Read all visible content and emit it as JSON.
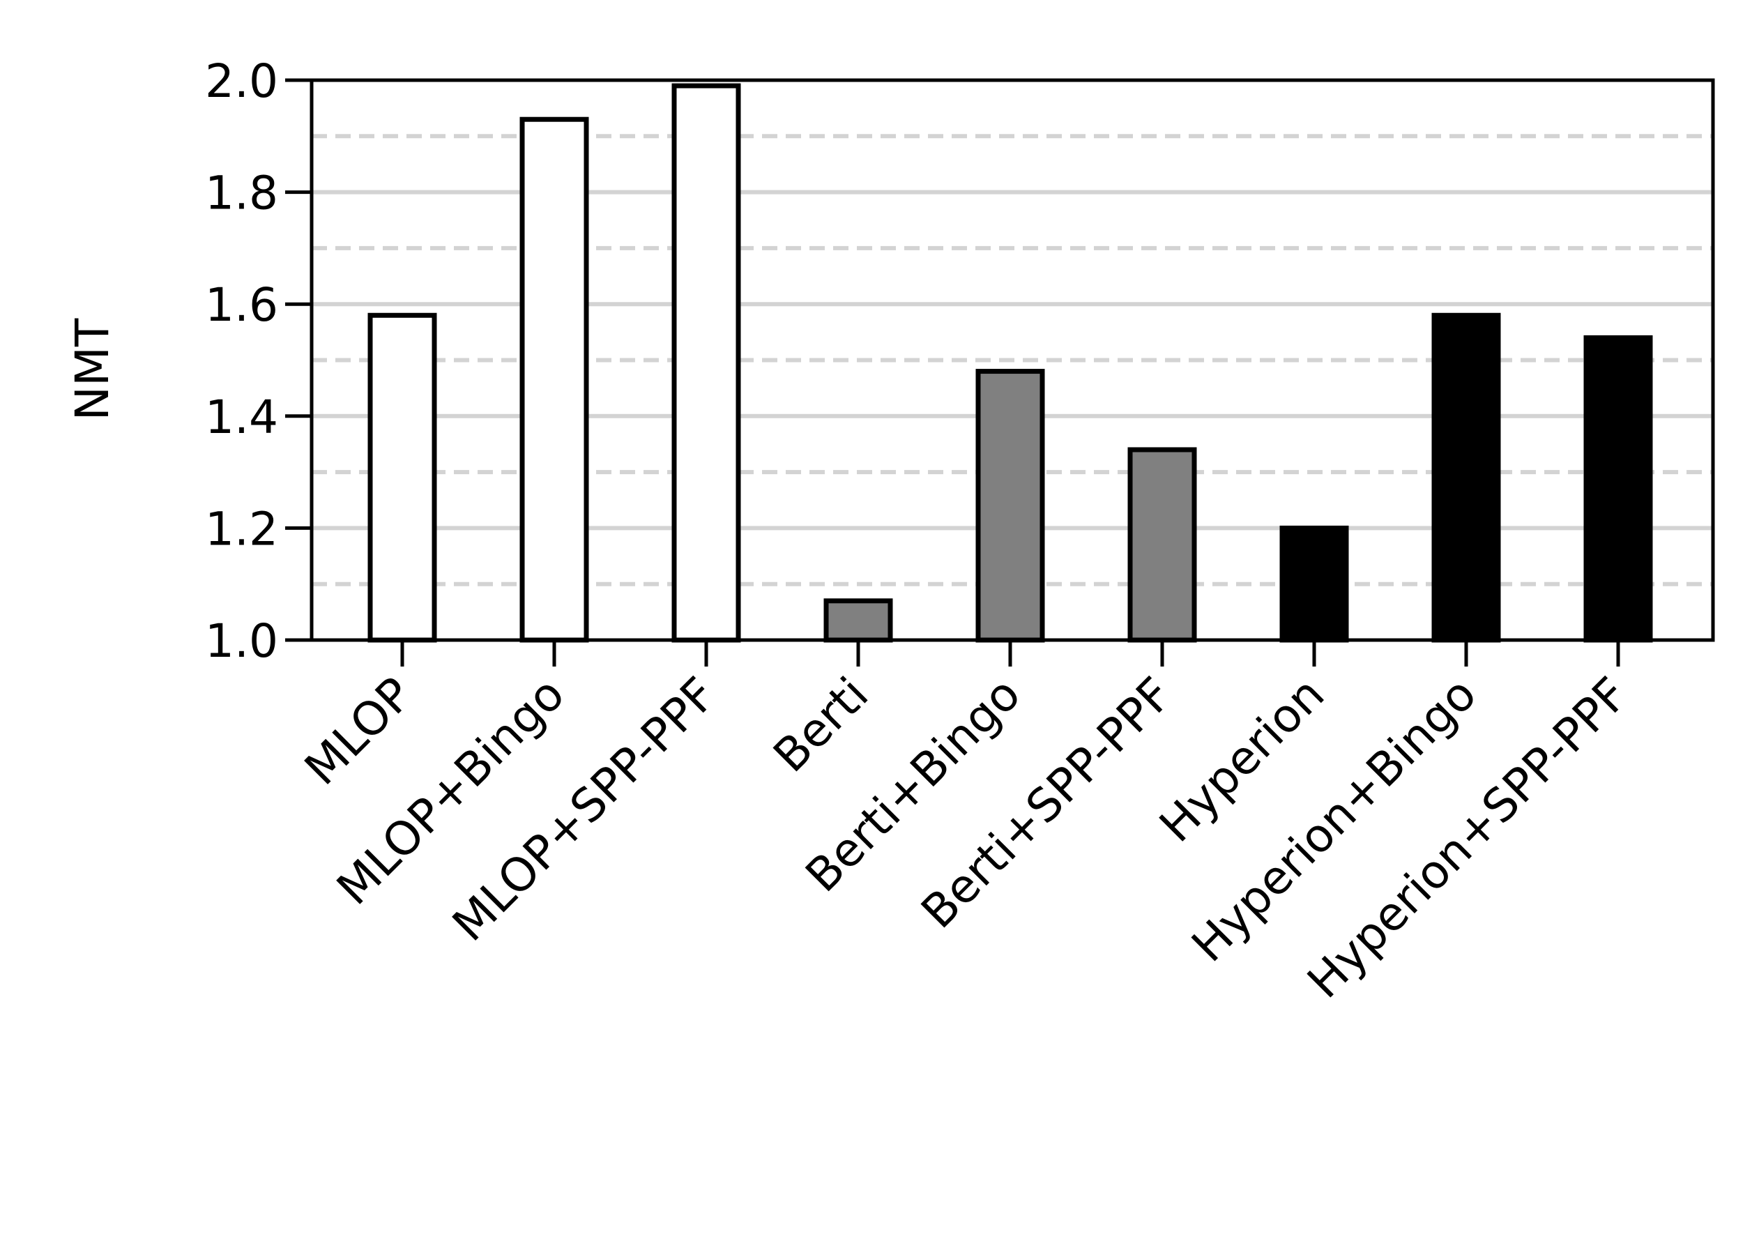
{
  "chart_data": {
    "type": "bar",
    "ylabel": "NMT",
    "xlabel": "",
    "title": "",
    "ylim": [
      1.0,
      2.0
    ],
    "yticks": [
      "1.0",
      "1.2",
      "1.4",
      "1.6",
      "1.8",
      "2.0"
    ],
    "grid": {
      "major": "solid",
      "minor": "dashed",
      "color": "#d3d3d3"
    },
    "categories": [
      "MLOP",
      "MLOP+Bingo",
      "MLOP+SPP-PPF",
      "Berti",
      "Berti+Bingo",
      "Berti+SPP-PPF",
      "Hyperion",
      "Hyperion+Bingo",
      "Hyperion+SPP-PPF"
    ],
    "values": [
      1.58,
      1.93,
      1.99,
      1.07,
      1.48,
      1.34,
      1.2,
      1.58,
      1.54
    ],
    "colors": [
      "#ffffff",
      "#ffffff",
      "#ffffff",
      "#808080",
      "#808080",
      "#808080",
      "#000000",
      "#000000",
      "#000000"
    ]
  }
}
